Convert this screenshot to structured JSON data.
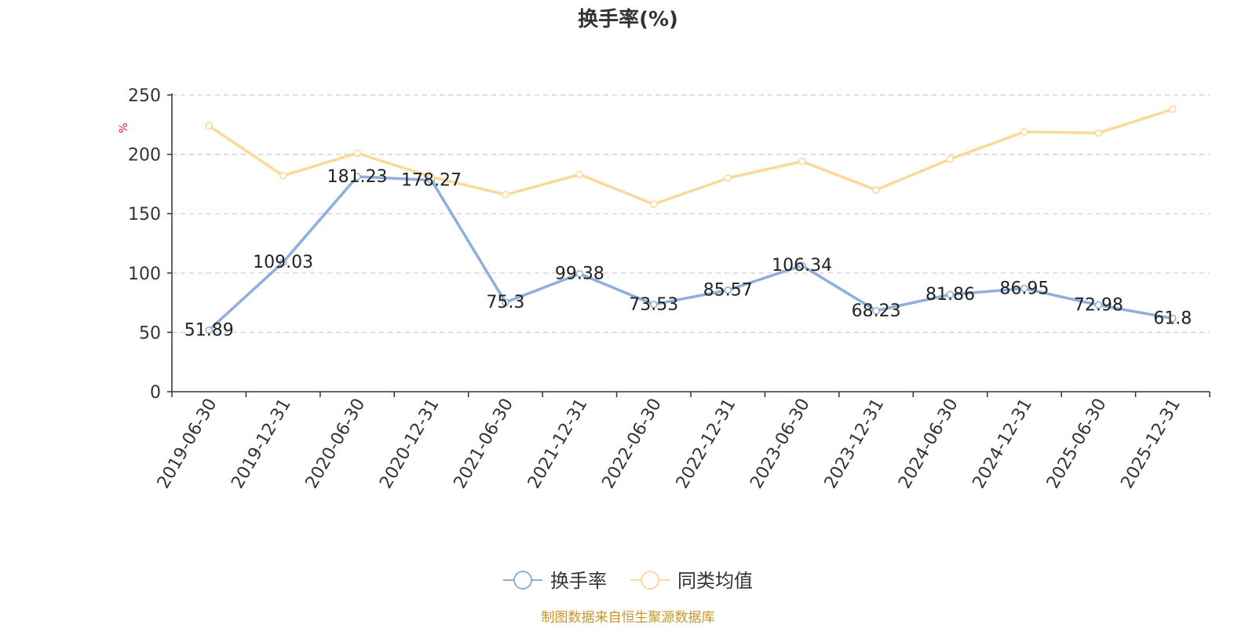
{
  "chart_data": {
    "type": "line",
    "title": "换手率(%)",
    "ylabel": "%",
    "xlabel": "",
    "ylim": [
      0,
      250
    ],
    "yticks": [
      0,
      50,
      100,
      150,
      200,
      250
    ],
    "grid": true,
    "legend_position": "bottom-center",
    "categories": [
      "2019-06-30",
      "2019-12-31",
      "2020-06-30",
      "2020-12-31",
      "2021-06-30",
      "2021-12-31",
      "2022-06-30",
      "2022-12-31",
      "2023-06-30",
      "2023-12-31",
      "2024-06-30",
      "2024-12-31",
      "2025-06-30",
      "2025-12-31"
    ],
    "series": [
      {
        "name": "换手率",
        "color": "#8eaedc",
        "show_labels": true,
        "values": [
          51.89,
          109.03,
          181.23,
          178.27,
          75.3,
          99.38,
          73.53,
          85.57,
          106.34,
          68.23,
          81.86,
          86.95,
          72.98,
          61.8
        ]
      },
      {
        "name": "同类均值",
        "color": "#fcd899",
        "show_labels": false,
        "values": [
          224,
          182,
          201,
          181,
          166,
          183,
          158,
          180,
          194,
          170,
          196,
          219,
          218,
          238
        ]
      }
    ]
  },
  "footer": {
    "source_text": "制图数据来自恒生聚源数据库",
    "source_color": "#c9952a"
  }
}
